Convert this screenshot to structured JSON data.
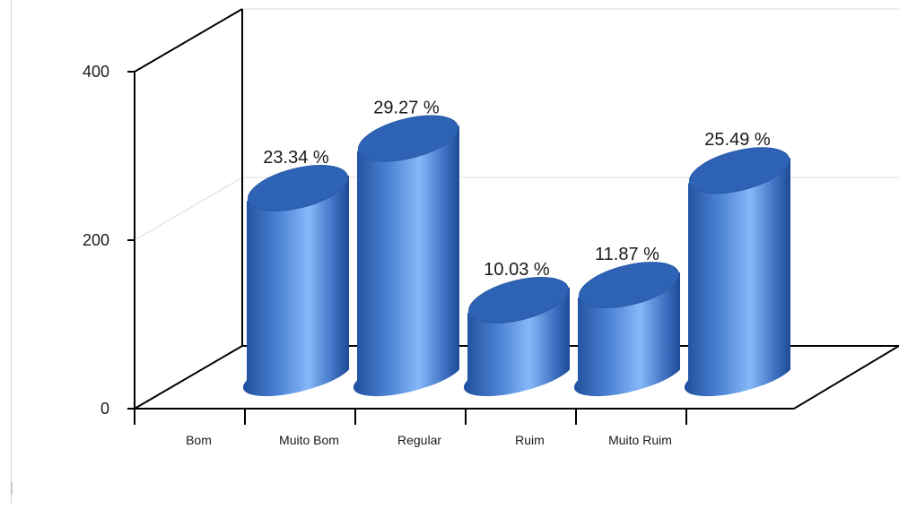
{
  "chart_data": {
    "type": "bar",
    "style": "3d-cylinder",
    "categories": [
      "Bom",
      "Muito Bom",
      "Regular",
      "Ruim",
      "Muito Ruim"
    ],
    "values": [
      233,
      292,
      100,
      118,
      254
    ],
    "data_labels": [
      "23.34 %",
      "29.27 %",
      "10.03 %",
      "11.87 %",
      "25.49 %"
    ],
    "ylim": [
      0,
      400
    ],
    "yticks": [
      0,
      200,
      400
    ],
    "ytick_labels": [
      "0",
      "200",
      "400"
    ],
    "grid": true,
    "legend": "none",
    "colors": {
      "bar_dark": "#1e4f9e",
      "bar_light": "#7fb2f5",
      "bar_top": "#2d62b4",
      "axis": "#000000",
      "grid": "#dcdcdc"
    }
  }
}
